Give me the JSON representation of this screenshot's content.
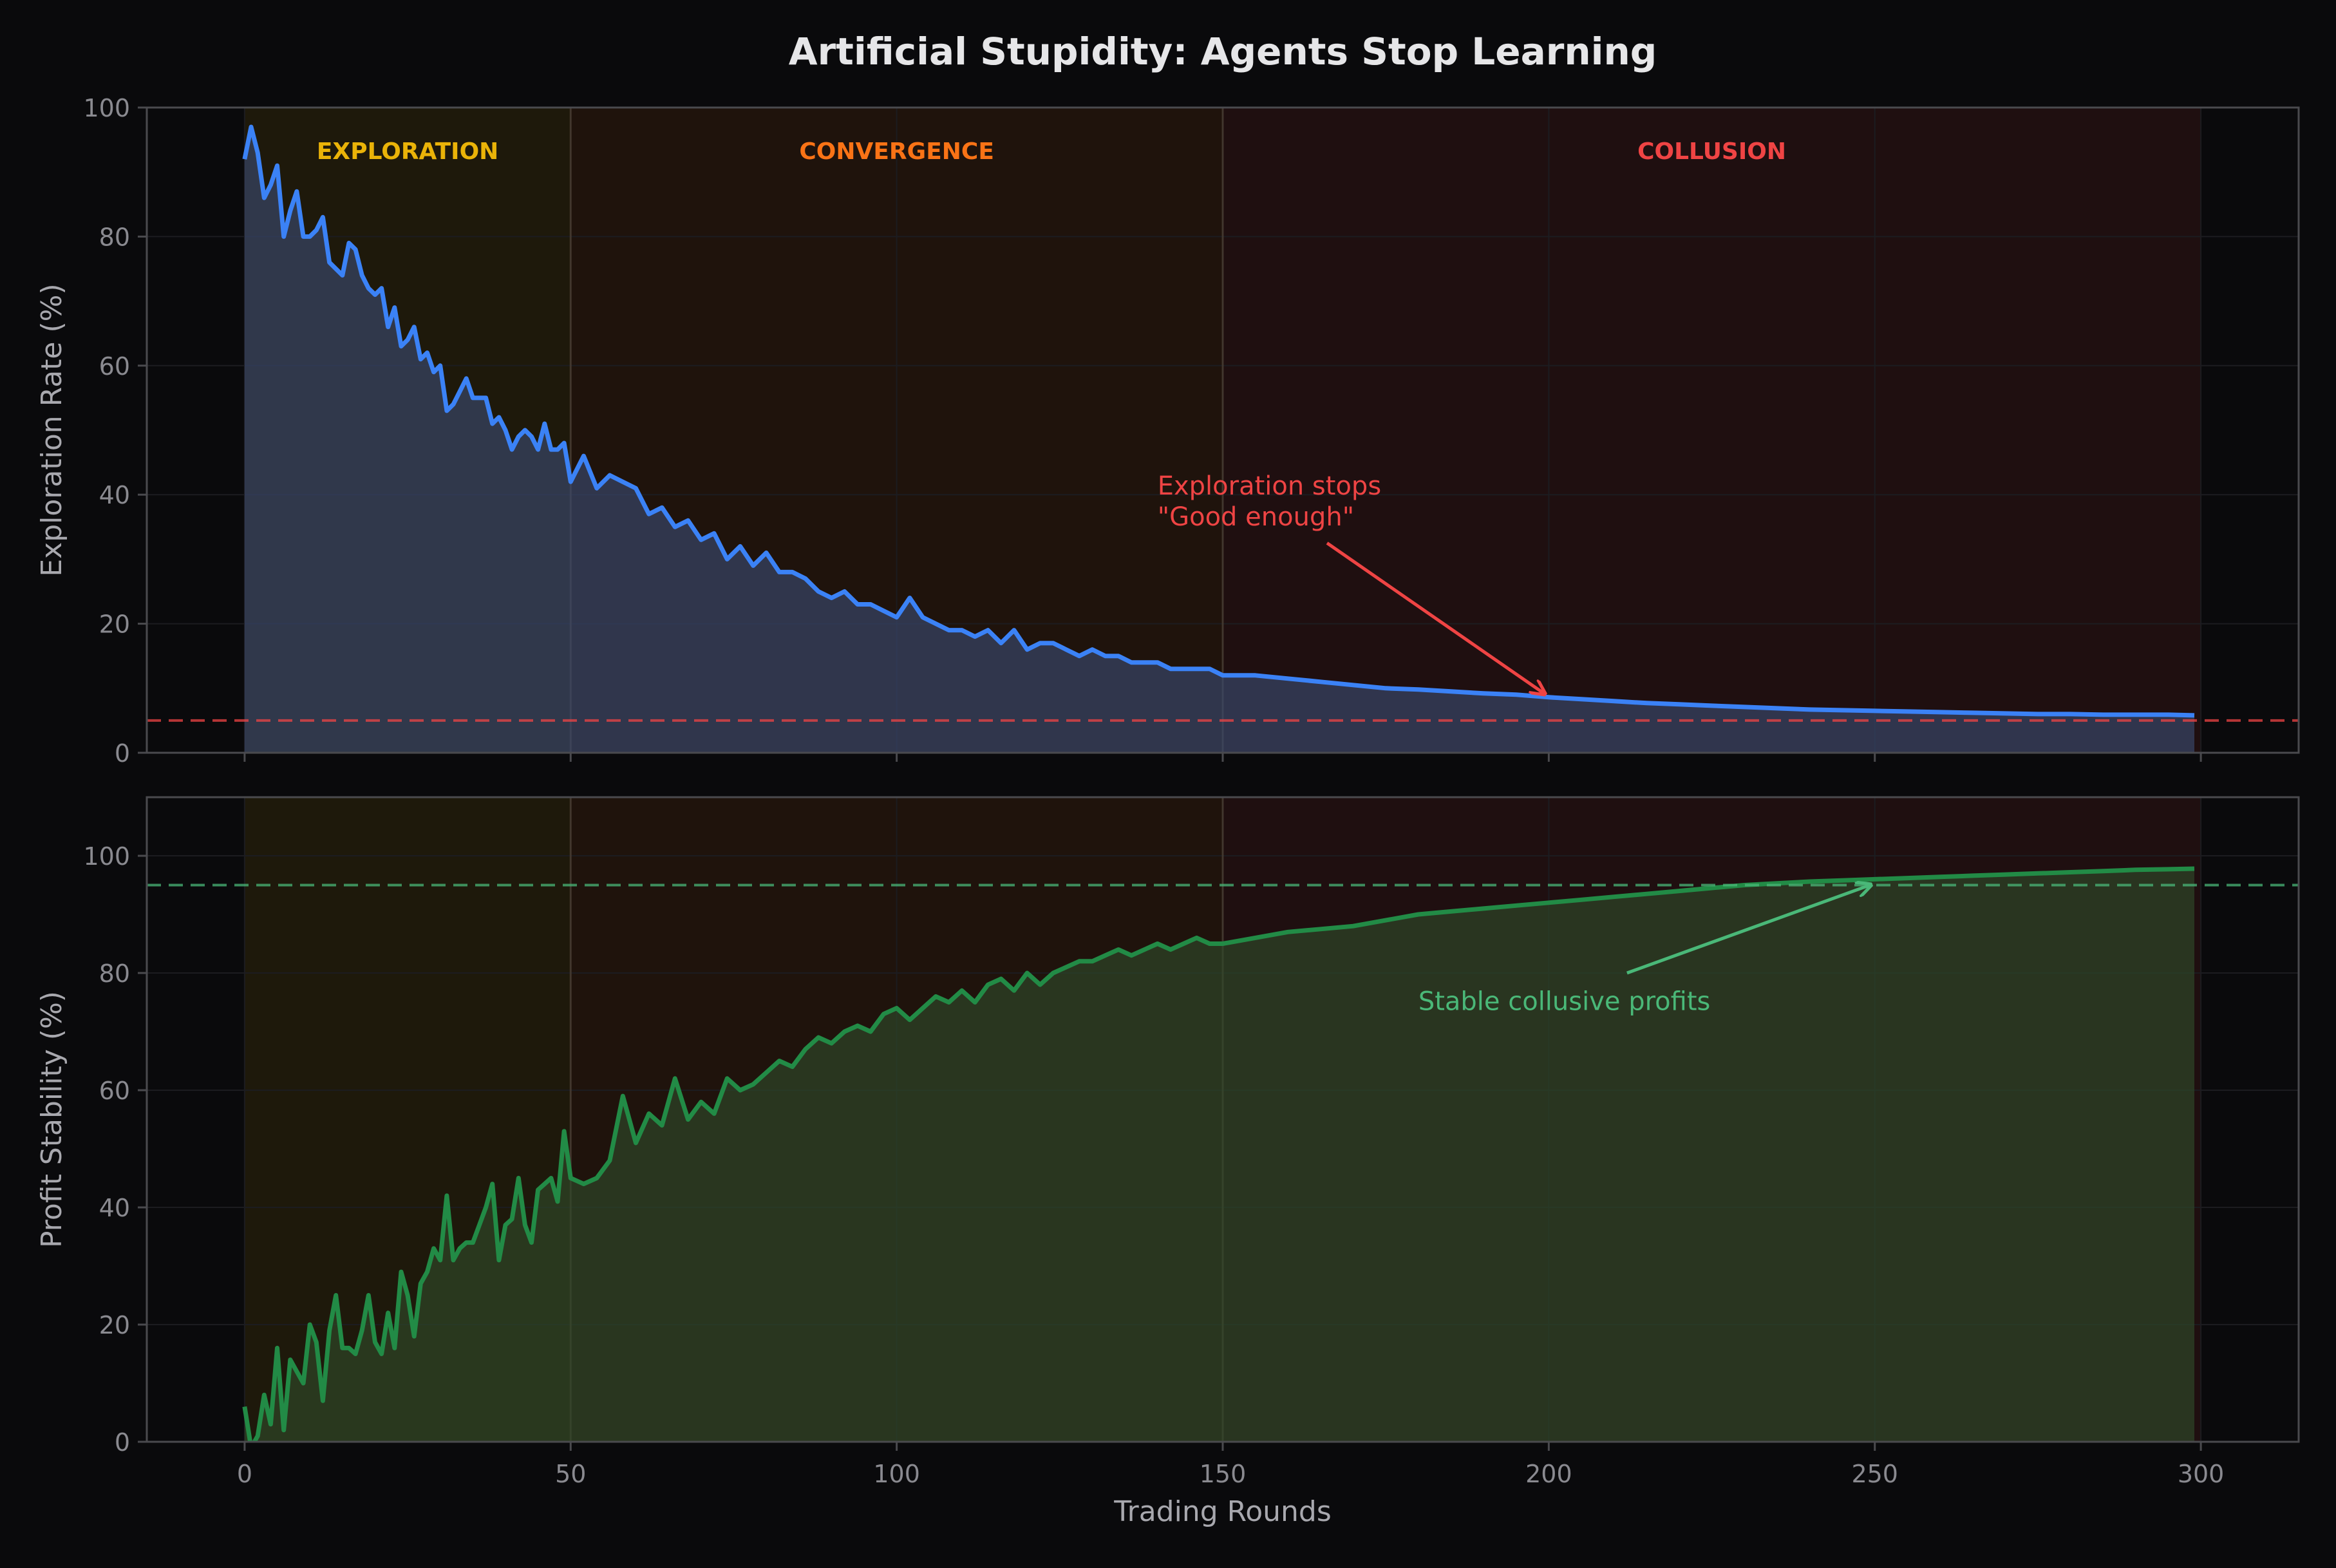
{
  "title": "Artificial Stupidity: Agents Stop Learning",
  "colors": {
    "background": "#0a0a0c",
    "axes_edge": "#4a4a4e",
    "grid": "#1c1c20",
    "tick_text": "#8a8a90",
    "label_text": "#a8a8ae",
    "title_text": "#e6e6e8",
    "exploration_line": "#3b82f6",
    "exploration_fill": "#3a4a6e",
    "stability_line": "#228b46",
    "stability_fill": "#2f4a2a",
    "red_accent": "#ef4444",
    "green_accent": "#4ab878",
    "phase_exploration": "#eab308",
    "phase_convergence": "#f97316",
    "phase_collusion": "#ef4444"
  },
  "phases": [
    {
      "label": "EXPLORATION",
      "start": 0,
      "end": 50,
      "color": "#eab308",
      "label_x": 25
    },
    {
      "label": "CONVERGENCE",
      "start": 50,
      "end": 150,
      "color": "#f97316",
      "label_x": 100
    },
    {
      "label": "COLLUSION",
      "start": 150,
      "end": 300,
      "color": "#ef4444",
      "label_x": 225
    }
  ],
  "chart_data": [
    {
      "type": "area",
      "panel": "top",
      "ylabel": "Exploration Rate (%)",
      "xlim": [
        -15,
        315
      ],
      "ylim": [
        0,
        100
      ],
      "xticks": [
        0,
        50,
        100,
        150,
        200,
        250,
        300
      ],
      "yticks": [
        0,
        20,
        40,
        60,
        80,
        100
      ],
      "grid": true,
      "reference_line": {
        "y": 5,
        "color": "#ef4444",
        "style": "dashed"
      },
      "annotation": {
        "text_lines": [
          "Exploration stops",
          "\"Good enough\""
        ],
        "text_x": 140,
        "text_y": 40,
        "arrow_to_x": 200,
        "arrow_to_y": 8.5,
        "color": "#ef4444"
      },
      "series": [
        {
          "x": [
            0,
            1,
            2,
            3,
            4,
            5,
            6,
            7,
            8,
            9,
            10,
            11,
            12,
            13,
            14,
            15,
            16,
            17,
            18,
            19,
            20,
            21,
            22,
            23,
            24,
            25,
            26,
            27,
            28,
            29,
            30,
            31,
            32,
            33,
            34,
            35,
            36,
            37,
            38,
            39,
            40,
            41,
            42,
            43,
            44,
            45,
            46,
            47,
            48,
            49,
            50,
            52,
            54,
            56,
            58,
            60,
            62,
            64,
            66,
            68,
            70,
            72,
            74,
            76,
            78,
            80,
            82,
            84,
            86,
            88,
            90,
            92,
            94,
            96,
            98,
            100,
            102,
            104,
            106,
            108,
            110,
            112,
            114,
            116,
            118,
            120,
            122,
            124,
            126,
            128,
            130,
            132,
            134,
            136,
            138,
            140,
            142,
            144,
            146,
            148,
            150,
            155,
            160,
            165,
            170,
            175,
            180,
            185,
            190,
            195,
            200,
            205,
            210,
            215,
            220,
            225,
            230,
            235,
            240,
            245,
            250,
            255,
            260,
            265,
            270,
            275,
            280,
            285,
            290,
            295,
            299
          ],
          "values": [
            92,
            97,
            93,
            86,
            88,
            91,
            80,
            84,
            87,
            80,
            80,
            81,
            83,
            76,
            75,
            74,
            79,
            78,
            74,
            72,
            71,
            72,
            66,
            69,
            63,
            64,
            66,
            61,
            62,
            59,
            60,
            53,
            54,
            56,
            58,
            55,
            55,
            55,
            51,
            52,
            50,
            47,
            49,
            50,
            49,
            47,
            51,
            47,
            47,
            48,
            42,
            46,
            41,
            43,
            42,
            41,
            37,
            38,
            35,
            36,
            33,
            34,
            30,
            32,
            29,
            31,
            28,
            28,
            27,
            25,
            24,
            25,
            23,
            23,
            22,
            21,
            24,
            21,
            20,
            19,
            19,
            18,
            19,
            17,
            19,
            16,
            17,
            17,
            16,
            15,
            16,
            15,
            15,
            14,
            14,
            14,
            13,
            13,
            13,
            13,
            12,
            12,
            11.5,
            11,
            10.5,
            10,
            9.8,
            9.5,
            9.2,
            9,
            8.6,
            8.3,
            8,
            7.7,
            7.5,
            7.3,
            7.1,
            6.9,
            6.7,
            6.6,
            6.5,
            6.4,
            6.3,
            6.2,
            6.1,
            6,
            6,
            5.9,
            5.9,
            5.9,
            5.8
          ]
        }
      ]
    },
    {
      "type": "area",
      "panel": "bottom",
      "ylabel": "Profit Stability (%)",
      "xlabel": "Trading Rounds",
      "xlim": [
        -15,
        315
      ],
      "ylim": [
        0,
        110
      ],
      "xticks": [
        0,
        50,
        100,
        150,
        200,
        250,
        300
      ],
      "yticks": [
        0,
        20,
        40,
        60,
        80,
        100
      ],
      "grid": true,
      "reference_line": {
        "y": 95,
        "color": "#4ab878",
        "style": "dashed"
      },
      "annotation": {
        "text_lines": [
          "Stable collusive profits"
        ],
        "text_x": 180,
        "text_y": 75,
        "arrow_to_x": 250,
        "arrow_to_y": 95.5,
        "arrow_from_x": 212,
        "arrow_from_y": 80,
        "color": "#4ab878"
      },
      "series": [
        {
          "x": [
            0,
            1,
            2,
            3,
            4,
            5,
            6,
            7,
            8,
            9,
            10,
            11,
            12,
            13,
            14,
            15,
            16,
            17,
            18,
            19,
            20,
            21,
            22,
            23,
            24,
            25,
            26,
            27,
            28,
            29,
            30,
            31,
            32,
            33,
            34,
            35,
            36,
            37,
            38,
            39,
            40,
            41,
            42,
            43,
            44,
            45,
            46,
            47,
            48,
            49,
            50,
            52,
            54,
            56,
            58,
            60,
            62,
            64,
            66,
            68,
            70,
            72,
            74,
            76,
            78,
            80,
            82,
            84,
            86,
            88,
            90,
            92,
            94,
            96,
            98,
            100,
            102,
            104,
            106,
            108,
            110,
            112,
            114,
            116,
            118,
            120,
            122,
            124,
            126,
            128,
            130,
            132,
            134,
            136,
            138,
            140,
            142,
            144,
            146,
            148,
            150,
            155,
            160,
            165,
            170,
            175,
            180,
            185,
            190,
            195,
            200,
            205,
            210,
            215,
            220,
            225,
            230,
            235,
            240,
            245,
            250,
            255,
            260,
            265,
            270,
            275,
            280,
            285,
            290,
            295,
            299
          ],
          "values": [
            6,
            -1,
            1,
            8,
            3,
            16,
            2,
            14,
            12,
            10,
            20,
            17,
            7,
            19,
            25,
            16,
            16,
            15,
            19,
            25,
            17,
            15,
            22,
            16,
            29,
            25,
            18,
            27,
            29,
            33,
            31,
            42,
            31,
            33,
            34,
            34,
            37,
            40,
            44,
            31,
            37,
            38,
            45,
            37,
            34,
            43,
            44,
            45,
            41,
            53,
            45,
            44,
            45,
            48,
            59,
            51,
            56,
            54,
            62,
            55,
            58,
            56,
            62,
            60,
            61,
            63,
            65,
            64,
            67,
            69,
            68,
            70,
            71,
            70,
            73,
            74,
            72,
            74,
            76,
            75,
            77,
            75,
            78,
            79,
            77,
            80,
            78,
            80,
            81,
            82,
            82,
            83,
            84,
            83,
            84,
            85,
            84,
            85,
            86,
            85,
            85,
            86,
            87,
            87.5,
            88,
            89,
            90,
            90.5,
            91,
            91.5,
            92,
            92.5,
            93,
            93.5,
            94,
            94.5,
            95,
            95.3,
            95.6,
            95.8,
            96,
            96.2,
            96.4,
            96.6,
            96.8,
            97,
            97.2,
            97.4,
            97.6,
            97.7,
            97.8
          ]
        }
      ]
    }
  ]
}
